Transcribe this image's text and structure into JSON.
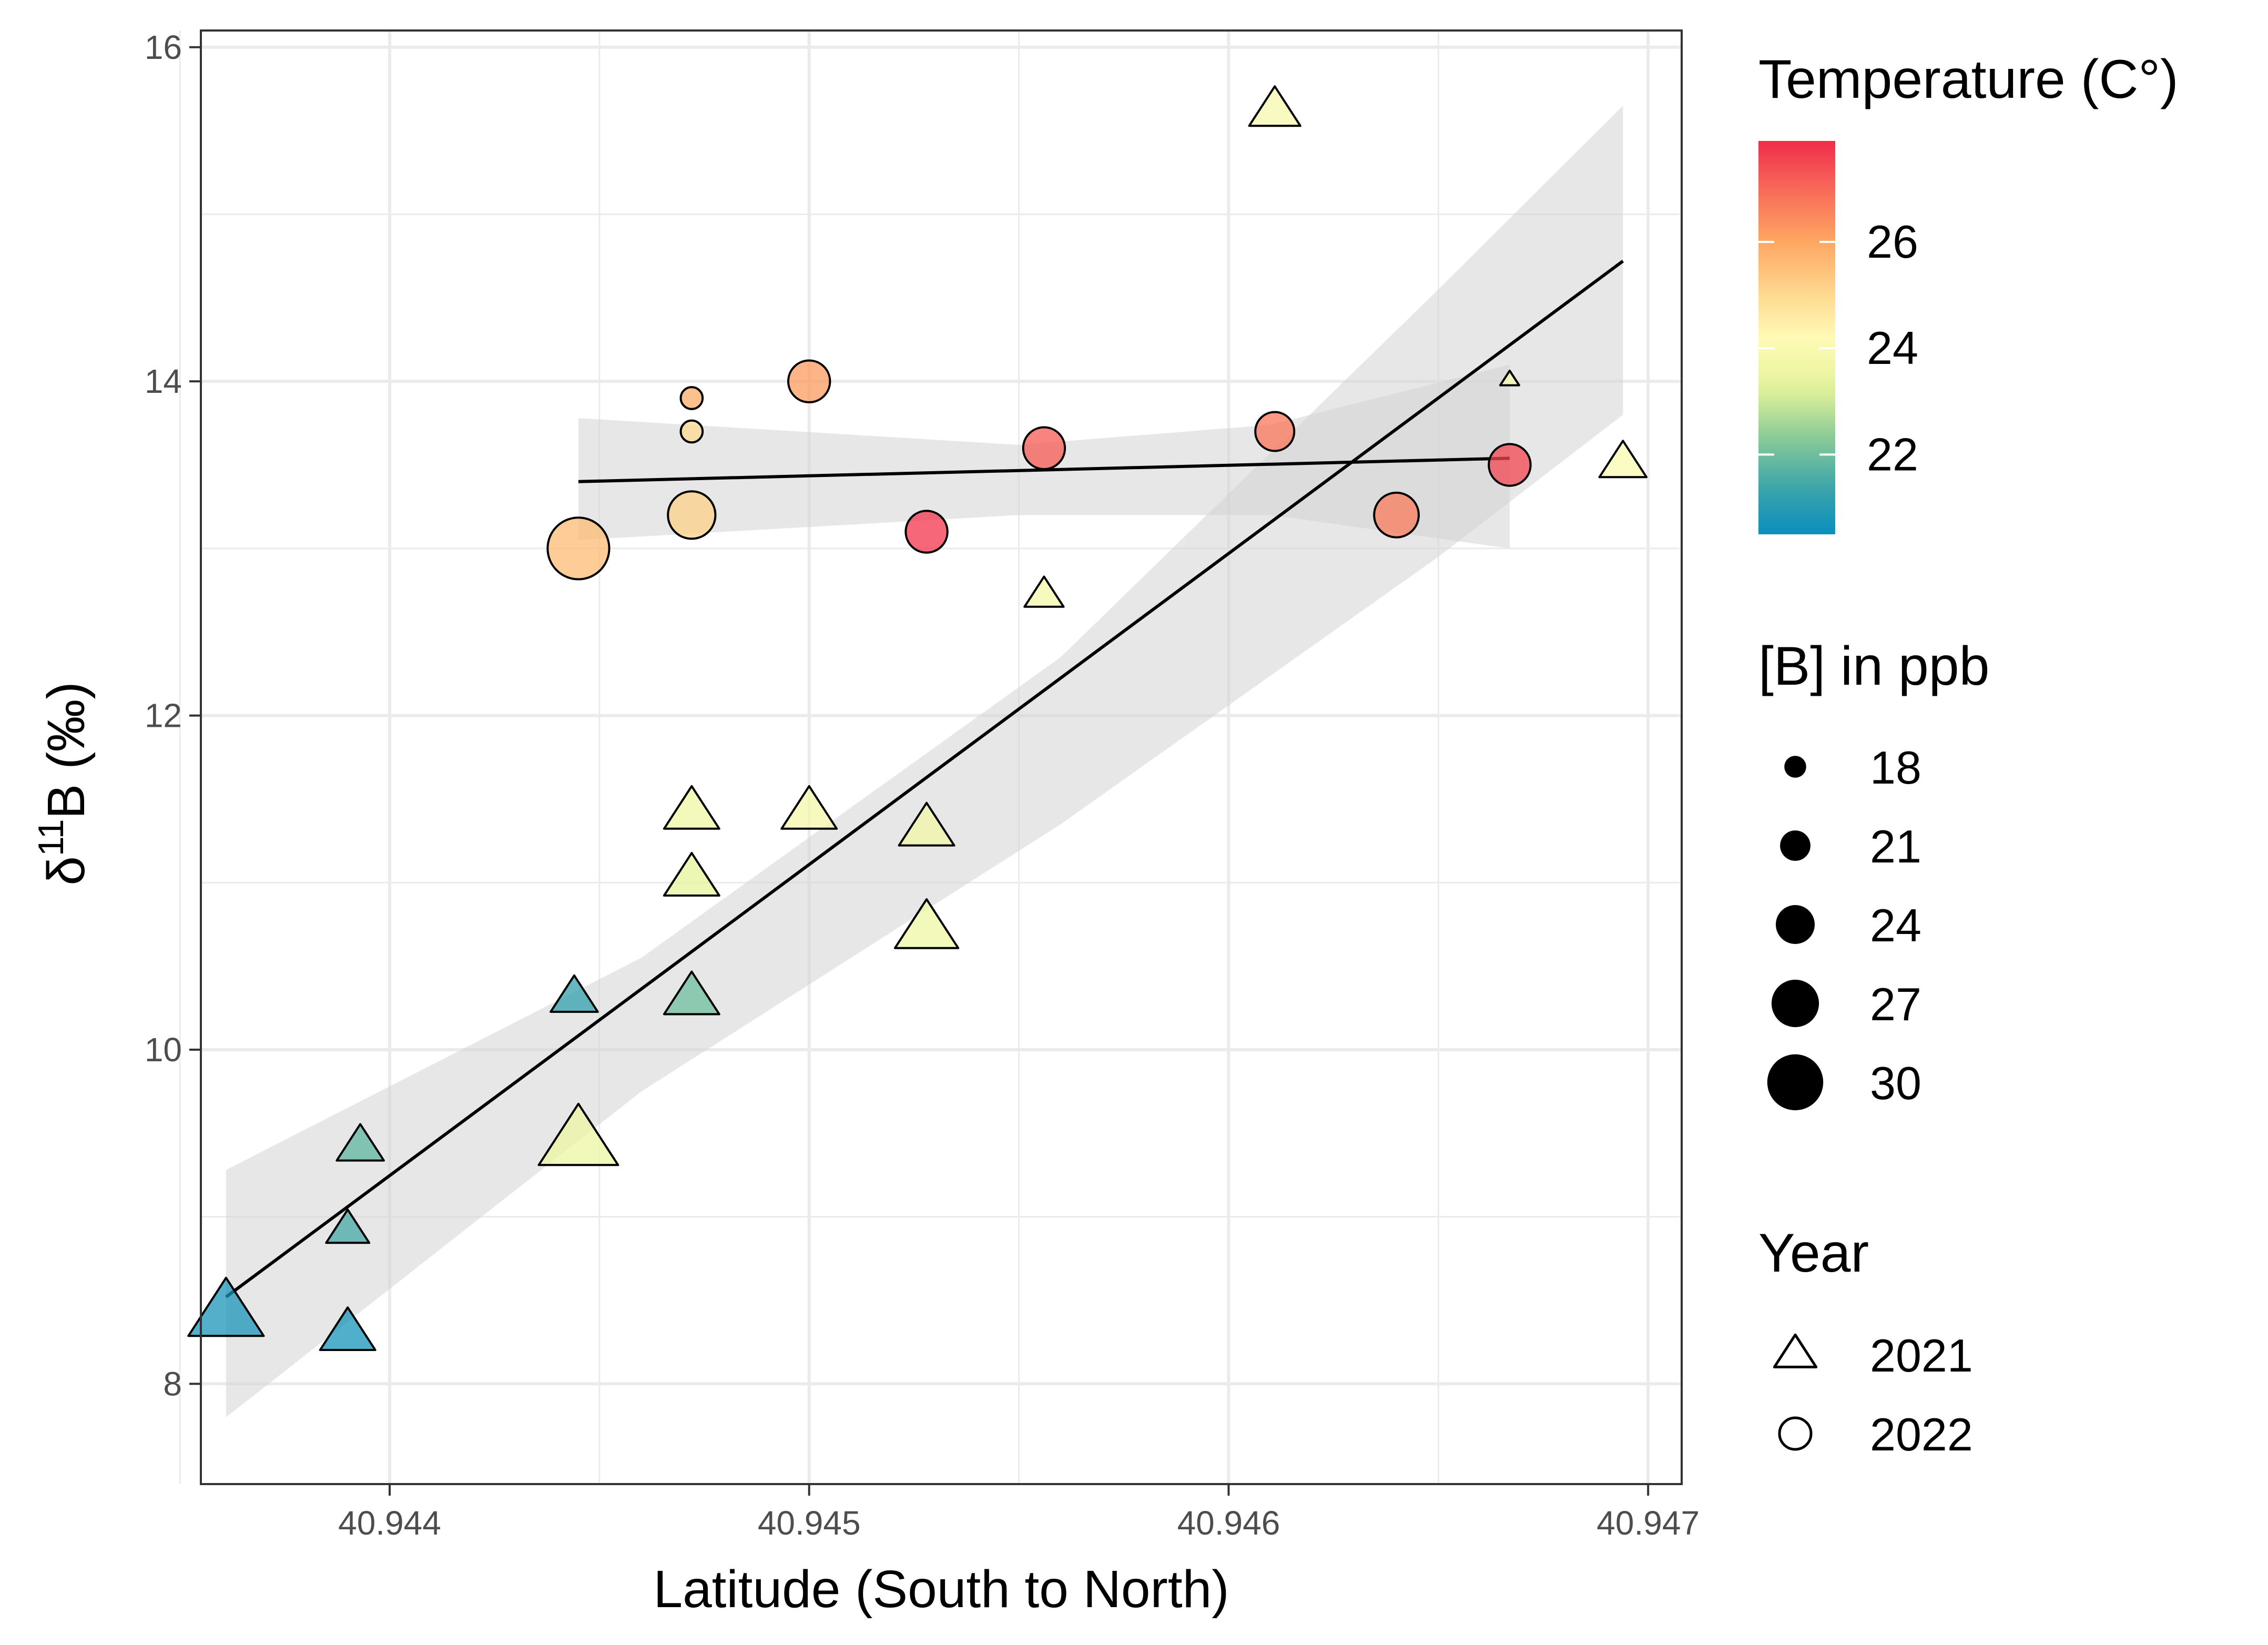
{
  "chart_data": {
    "type": "scatter",
    "xlabel": "Latitude (South to North)",
    "ylabel_parts": {
      "delta": "δ",
      "sup": "11",
      "rest": "B (‰)"
    },
    "xlim": [
      40.94355,
      40.94708
    ],
    "ylim": [
      7.4,
      16.1
    ],
    "x_ticks": [
      {
        "value": 40.944,
        "label": "40.944"
      },
      {
        "value": 40.945,
        "label": "40.945"
      },
      {
        "value": 40.946,
        "label": "40.946"
      },
      {
        "value": 40.947,
        "label": "40.947"
      }
    ],
    "y_ticks": [
      {
        "value": 8,
        "label": "8"
      },
      {
        "value": 10,
        "label": "10"
      },
      {
        "value": 12,
        "label": "12"
      },
      {
        "value": 14,
        "label": "14"
      },
      {
        "value": 16,
        "label": "16"
      }
    ],
    "x_minor": [
      40.9435,
      40.9445,
      40.9455,
      40.9465
    ],
    "y_minor": [
      9,
      11,
      13,
      15
    ],
    "series": [
      {
        "name": "2021",
        "shape": "triangle",
        "points": [
          {
            "x": 40.94361,
            "y": 8.42,
            "temp": 20.8,
            "b": 29
          },
          {
            "x": 40.9439,
            "y": 8.3,
            "temp": 20.7,
            "b": 24
          },
          {
            "x": 40.9439,
            "y": 8.92,
            "temp": 21.5,
            "b": 21
          },
          {
            "x": 40.94393,
            "y": 9.42,
            "temp": 21.8,
            "b": 22
          },
          {
            "x": 40.94444,
            "y": 10.31,
            "temp": 21.2,
            "b": 22
          },
          {
            "x": 40.94445,
            "y": 9.45,
            "temp": 23.5,
            "b": 30
          },
          {
            "x": 40.94472,
            "y": 10.31,
            "temp": 22.0,
            "b": 24
          },
          {
            "x": 40.94472,
            "y": 11.02,
            "temp": 23.3,
            "b": 24
          },
          {
            "x": 40.94472,
            "y": 11.42,
            "temp": 23.6,
            "b": 24
          },
          {
            "x": 40.945,
            "y": 11.42,
            "temp": 23.8,
            "b": 24
          },
          {
            "x": 40.94528,
            "y": 10.72,
            "temp": 23.6,
            "b": 26
          },
          {
            "x": 40.94528,
            "y": 11.32,
            "temp": 23.7,
            "b": 24
          },
          {
            "x": 40.94556,
            "y": 12.72,
            "temp": 23.8,
            "b": 20
          },
          {
            "x": 40.94611,
            "y": 15.62,
            "temp": 23.9,
            "b": 23
          },
          {
            "x": 40.94667,
            "y": 14.01,
            "temp": 24.0,
            "b": 15
          },
          {
            "x": 40.94694,
            "y": 13.51,
            "temp": 24.0,
            "b": 22
          }
        ]
      },
      {
        "name": "2022",
        "shape": "circle",
        "points": [
          {
            "x": 40.94445,
            "y": 13.0,
            "temp": 25.6,
            "b": 32
          },
          {
            "x": 40.94472,
            "y": 13.2,
            "temp": 25.2,
            "b": 27
          },
          {
            "x": 40.94472,
            "y": 13.7,
            "temp": 25.0,
            "b": 18
          },
          {
            "x": 40.94472,
            "y": 13.9,
            "temp": 25.9,
            "b": 18
          },
          {
            "x": 40.945,
            "y": 14.0,
            "temp": 26.2,
            "b": 25
          },
          {
            "x": 40.94528,
            "y": 13.1,
            "temp": 27.8,
            "b": 25
          },
          {
            "x": 40.94556,
            "y": 13.6,
            "temp": 27.2,
            "b": 25
          },
          {
            "x": 40.94611,
            "y": 13.7,
            "temp": 26.8,
            "b": 24
          },
          {
            "x": 40.9464,
            "y": 13.2,
            "temp": 26.7,
            "b": 26
          },
          {
            "x": 40.94667,
            "y": 13.5,
            "temp": 27.5,
            "b": 25
          }
        ]
      }
    ],
    "fits": [
      {
        "name": "2021 linear fit",
        "x": [
          40.94361,
          40.94694
        ],
        "y": [
          8.52,
          14.72
        ],
        "ribbon_x": [
          40.94361,
          40.9446,
          40.9456,
          40.9465,
          40.94694
        ],
        "ribbon_lo": [
          7.8,
          9.75,
          11.35,
          12.95,
          13.8
        ],
        "ribbon_hi": [
          9.28,
          10.55,
          12.35,
          14.55,
          15.65
        ]
      },
      {
        "name": "2022 linear fit",
        "x": [
          40.94445,
          40.94667
        ],
        "y": [
          13.4,
          13.54
        ],
        "ribbon_x": [
          40.94445,
          40.9455,
          40.9461,
          40.94667
        ],
        "ribbon_lo": [
          13.05,
          13.2,
          13.2,
          13.0
        ],
        "ribbon_hi": [
          13.78,
          13.62,
          13.74,
          14.1
        ]
      }
    ],
    "legend": {
      "temperature": {
        "title": "Temperature (C°)",
        "range": [
          20.5,
          27.9
        ],
        "ticks": [
          {
            "value": 22,
            "label": "22"
          },
          {
            "value": 24,
            "label": "24"
          },
          {
            "value": 26,
            "label": "26"
          }
        ]
      },
      "size": {
        "title": "[B] in ppb",
        "items": [
          {
            "value": 18,
            "label": "18"
          },
          {
            "value": 21,
            "label": "21"
          },
          {
            "value": 24,
            "label": "24"
          },
          {
            "value": 27,
            "label": "27"
          },
          {
            "value": 30,
            "label": "30"
          }
        ]
      },
      "year": {
        "title": "Year",
        "items": [
          {
            "label": "2021",
            "shape": "triangle"
          },
          {
            "label": "2022",
            "shape": "circle"
          }
        ]
      }
    }
  },
  "colors": {
    "palette": [
      "#0a8fbf",
      "#3fa6a8",
      "#8dcc97",
      "#e6f49a",
      "#fffab6",
      "#fed48a",
      "#fda460",
      "#f86a5a",
      "#f02d4a"
    ],
    "panel_border": "#333333",
    "grid": "#ebebeb",
    "ribbon": "#d3d3d3",
    "fit_line": "#000000"
  }
}
